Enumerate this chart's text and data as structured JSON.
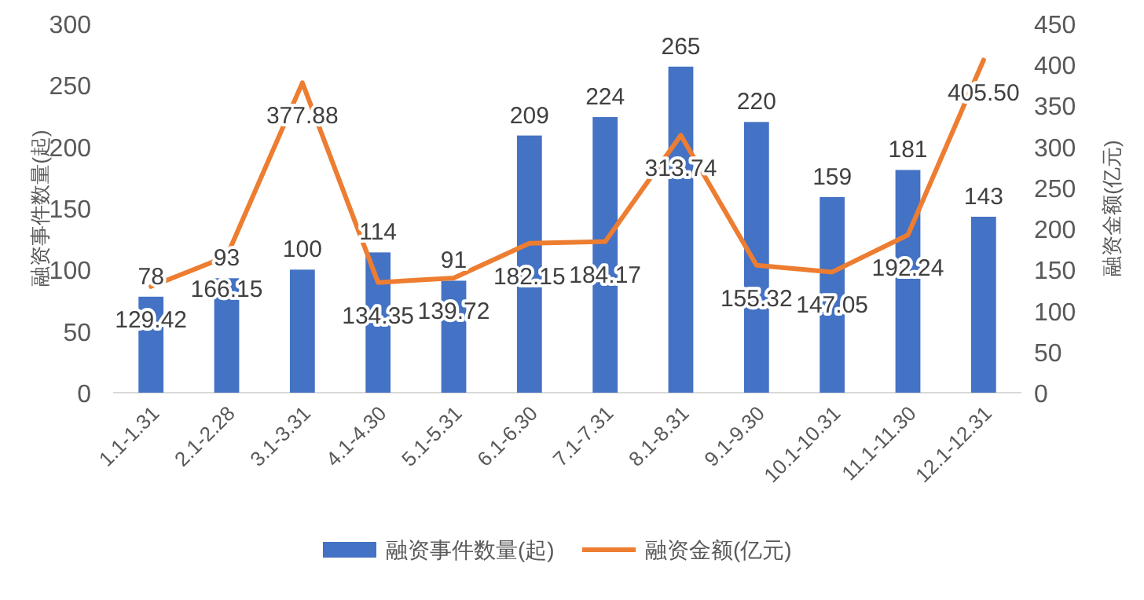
{
  "chart_data": {
    "type": "bar",
    "categories": [
      "1.1-1.31",
      "2.1-2.28",
      "3.1-3.31",
      "4.1-4.30",
      "5.1-5.31",
      "6.1-6.30",
      "7.1-7.31",
      "8.1-8.31",
      "9.1-9.30",
      "10.1-10.31",
      "11.1-11.30",
      "12.1-12.31"
    ],
    "series": [
      {
        "name": "融资事件数量(起)",
        "color": "#4472c4",
        "values": [
          78,
          93,
          100,
          114,
          91,
          209,
          224,
          265,
          220,
          159,
          181,
          143
        ]
      },
      {
        "name": "融资金额(亿元)",
        "type": "line",
        "axis": "y2",
        "color": "#ed7d31",
        "values": [
          129.42,
          166.15,
          377.88,
          134.35,
          139.72,
          182.15,
          184.17,
          313.74,
          155.32,
          147.05,
          192.24,
          405.5
        ],
        "value_labels": [
          "129.42",
          "166.15",
          "377.88",
          "134.35",
          "139.72",
          "182.15",
          "184.17",
          "313.74",
          "155.32",
          "147.05",
          "192.24",
          "405.50"
        ]
      }
    ],
    "ylabel": "融资事件数量(起)",
    "y2label": "融资金额(亿元)",
    "ylim": [
      0,
      300
    ],
    "yticks": [
      0,
      50,
      100,
      150,
      200,
      250,
      300
    ],
    "y2lim": [
      0,
      450
    ],
    "y2ticks": [
      0,
      50,
      100,
      150,
      200,
      250,
      300,
      350,
      400,
      450
    ],
    "data_labels": true,
    "legend": "bottom"
  }
}
